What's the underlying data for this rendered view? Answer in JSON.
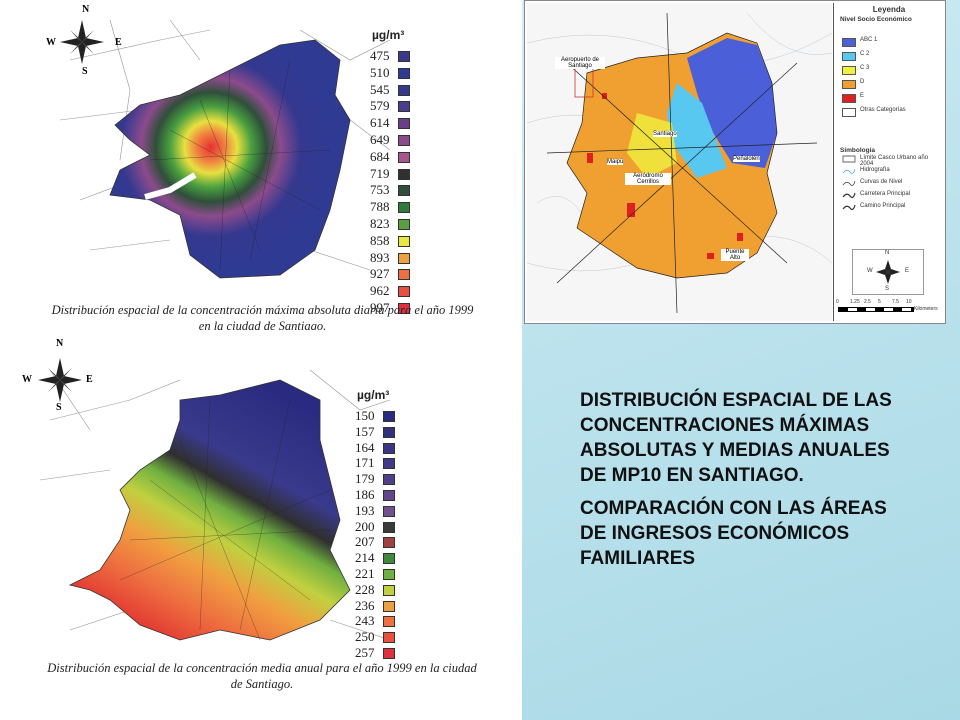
{
  "main_text": {
    "paragraph1": "DISTRIBUCIÓN ESPACIAL DE LAS CONCENTRACIONES MÁXIMAS ABSOLUTAS Y MEDIAS ANUALES DE MP10 EN SANTIAGO.",
    "paragraph2": "COMPARACIÓN CON LAS ÁREAS DE INGRESOS ECONÓMICOS FAMILIARES"
  },
  "map_top": {
    "unit": "µg/m³",
    "legend_values": [
      "475",
      "510",
      "545",
      "579",
      "614",
      "649",
      "684",
      "719",
      "753",
      "788",
      "823",
      "858",
      "893",
      "927",
      "962",
      "997"
    ],
    "legend_colors": [
      "#3a3a8c",
      "#2f3a92",
      "#34398f",
      "#4a3c8e",
      "#6a3f8a",
      "#8c4b8c",
      "#a8568f",
      "#303030",
      "#2f4f3a",
      "#2f7a3a",
      "#5aa040",
      "#e8e840",
      "#f0a040",
      "#ee7040",
      "#e85040",
      "#e03040"
    ],
    "caption_line1": "Distribución espacial de la concentración máxima absoluta diaria para el año 1999",
    "caption_line2": "en la ciudad de Santiago.",
    "compass": {
      "n": "N",
      "e": "E",
      "s": "S",
      "w": "W"
    }
  },
  "map_bottom": {
    "unit": "µg/m³",
    "legend_values": [
      "150",
      "157",
      "164",
      "171",
      "179",
      "186",
      "193",
      "200",
      "207",
      "214",
      "221",
      "228",
      "236",
      "243",
      "250",
      "257"
    ],
    "legend_colors": [
      "#2a2a80",
      "#30307f",
      "#383584",
      "#423a88",
      "#503e8a",
      "#62458c",
      "#72508e",
      "#3a3a3a",
      "#a04040",
      "#3d8a3a",
      "#70b040",
      "#c0d040",
      "#e8a040",
      "#ee7040",
      "#e85040",
      "#e03040"
    ],
    "caption_line1": "Distribución espacial de la concentración media anual para el año 1999 en la ciudad",
    "caption_line2": "de Santiago.",
    "compass": {
      "n": "N",
      "e": "E",
      "s": "S",
      "w": "W"
    }
  },
  "map_right": {
    "legend_title": "Leyenda",
    "nse_title": "Nivel Socio Económico",
    "nse_items": [
      {
        "label": "ABC 1",
        "color": "#4a5fd8"
      },
      {
        "label": "C 2",
        "color": "#58c8f0"
      },
      {
        "label": "C 3",
        "color": "#f0f040"
      },
      {
        "label": "D",
        "color": "#f0a030"
      },
      {
        "label": "E",
        "color": "#e02020"
      },
      {
        "label": "Otras Categorías",
        "color": "#ffffff"
      }
    ],
    "simbologia_title": "Simbología",
    "symbol_items": [
      "Límite Casco Urbano año 2004",
      "Hidrografía",
      "Curvas de Nivel",
      "Carretera Principal",
      "Camino Principal"
    ],
    "compass": {
      "n": "N",
      "e": "E",
      "s": "S",
      "w": "W"
    },
    "scale_labels": [
      "0",
      "1.25",
      "2.5",
      "5",
      "7.5",
      "10"
    ],
    "scale_unit": "Kilometers",
    "place_labels": [
      "Aeropuerto de Santiago",
      "Santiago",
      "Maipú",
      "Aeródromo Cerrillos",
      "Peñalolén",
      "Puente Alto"
    ]
  }
}
